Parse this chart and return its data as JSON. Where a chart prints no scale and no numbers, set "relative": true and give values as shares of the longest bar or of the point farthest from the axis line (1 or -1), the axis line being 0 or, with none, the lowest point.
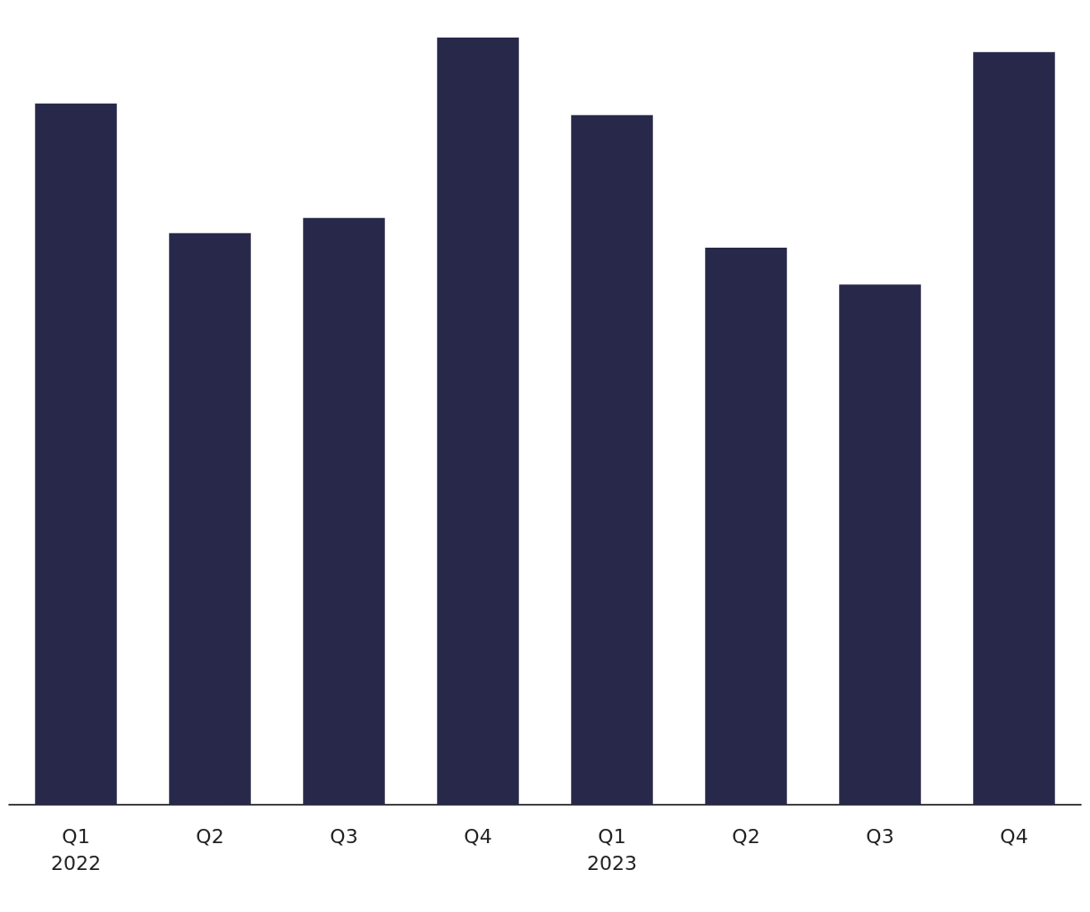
{
  "chart_data": {
    "type": "bar",
    "relative": true,
    "categories": [
      "Q1\n2022",
      "Q2",
      "Q3",
      "Q4",
      "Q1\n2023",
      "Q2",
      "Q3",
      "Q4"
    ],
    "values": [
      0.914,
      0.745,
      0.765,
      1,
      0.899,
      0.726,
      0.678,
      0.981
    ],
    "color": "#28284a",
    "grid": false
  }
}
